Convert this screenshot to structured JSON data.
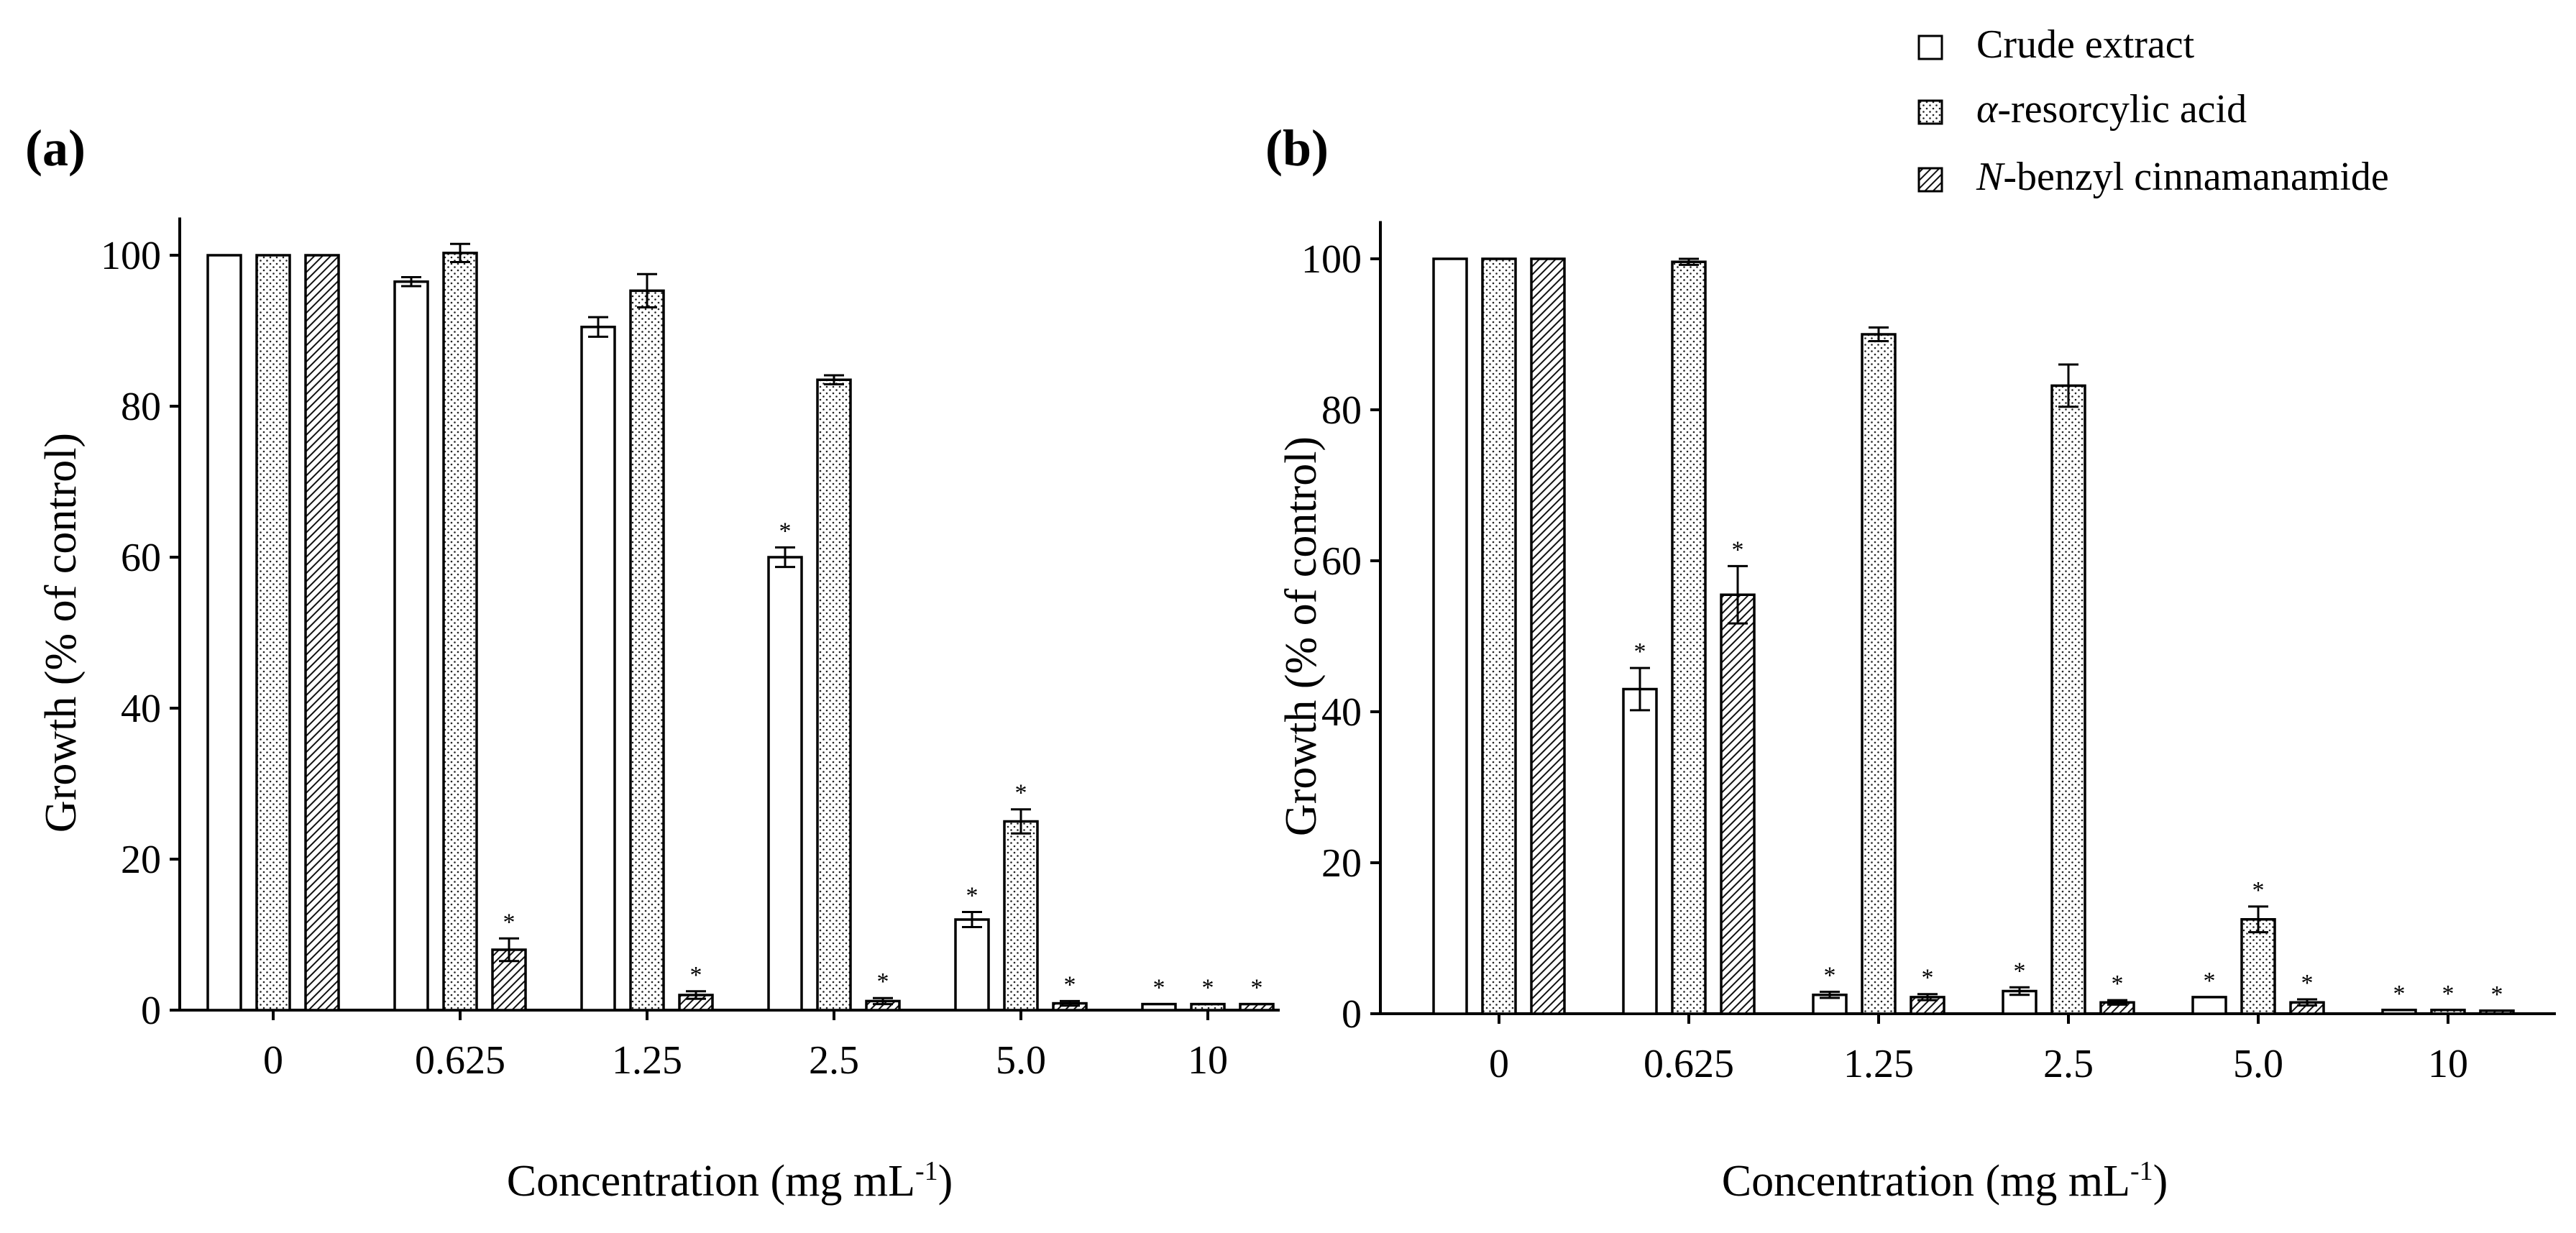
{
  "legend": {
    "placement": "top-right",
    "entries": [
      {
        "label": "Crude extract",
        "pattern": "blank"
      },
      {
        "prefix": "α",
        "label": "-resorcylic acid",
        "pattern": "dots"
      },
      {
        "prefix": "N",
        "label": "-benzyl cinnamanamide",
        "pattern": "hatch"
      }
    ]
  },
  "chart_data": [
    {
      "type": "bar",
      "panel_label": "(a)",
      "ylabel": "Growth (% of control)",
      "xlabel": "Concentration (mg mL",
      "xlabel_sup": "-1",
      "xlabel_close": ")",
      "ylim": [
        0,
        105
      ],
      "yticks": [
        "0",
        "20",
        "40",
        "60",
        "80",
        "100"
      ],
      "categories": [
        "0",
        "0.625",
        "1.25",
        "2.5",
        "5.0",
        "10"
      ],
      "significance_marker": "*",
      "series": [
        {
          "name": "Crude extract",
          "values": [
            100,
            96.5,
            90.5,
            60,
            12,
            0.8
          ],
          "errors": [
            0,
            0.6,
            1.3,
            1.3,
            1.0,
            0
          ],
          "significant": [
            false,
            false,
            false,
            true,
            true,
            true
          ]
        },
        {
          "name": "α-resorcylic acid",
          "values": [
            100,
            100.3,
            95.3,
            83.5,
            25,
            0.8
          ],
          "errors": [
            0,
            1.2,
            2.2,
            0.6,
            1.6,
            0
          ],
          "significant": [
            false,
            false,
            false,
            false,
            true,
            true
          ]
        },
        {
          "name": "N-benzyl cinnamanamide",
          "values": [
            100,
            8,
            2,
            1.2,
            0.9,
            0.8
          ],
          "errors": [
            0,
            1.5,
            0.5,
            0.4,
            0.3,
            0
          ],
          "significant": [
            false,
            true,
            true,
            true,
            true,
            true
          ]
        }
      ]
    },
    {
      "type": "bar",
      "panel_label": "(b)",
      "ylabel": "Growth (% of control)",
      "xlabel": "Concentration (mg mL",
      "xlabel_sup": "-1",
      "xlabel_close": ")",
      "ylim": [
        0,
        105
      ],
      "yticks": [
        "0",
        "20",
        "40",
        "60",
        "80",
        "100"
      ],
      "categories": [
        "0",
        "0.625",
        "1.25",
        "2.5",
        "5.0",
        "10"
      ],
      "significance_marker": "*",
      "series": [
        {
          "name": "Crude extract",
          "values": [
            100,
            43,
            2.5,
            3,
            2.2,
            0.5
          ],
          "errors": [
            0,
            2.8,
            0.4,
            0.5,
            0,
            0
          ],
          "significant": [
            false,
            true,
            true,
            true,
            true,
            true
          ]
        },
        {
          "name": "α-resorcylic acid",
          "values": [
            100,
            99.6,
            90,
            83.2,
            12.5,
            0.5
          ],
          "errors": [
            0,
            0.4,
            0.9,
            2.8,
            1.7,
            0
          ],
          "significant": [
            false,
            false,
            false,
            false,
            true,
            true
          ]
        },
        {
          "name": "N-benzyl cinnamanamide",
          "values": [
            100,
            55.5,
            2.2,
            1.5,
            1.5,
            0.4
          ],
          "errors": [
            0,
            3.8,
            0.4,
            0.3,
            0.4,
            0
          ],
          "significant": [
            false,
            true,
            true,
            true,
            true,
            true
          ]
        }
      ]
    }
  ]
}
